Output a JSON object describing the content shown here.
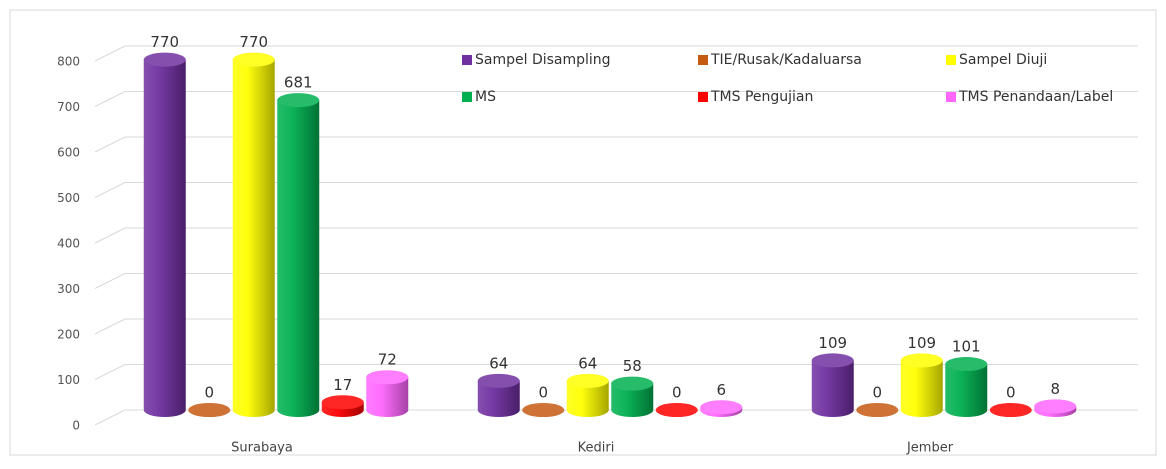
{
  "chart_data": {
    "type": "bar3d",
    "categories": [
      "Surabaya",
      "Kediri",
      "Jember"
    ],
    "series": [
      {
        "name": "Sampel Disampling",
        "color": "#7030a0",
        "values": [
          770,
          64,
          109
        ]
      },
      {
        "name": "TIE/Rusak/Kadaluarsa",
        "color": "#c55a11",
        "values": [
          0,
          0,
          0
        ]
      },
      {
        "name": "Sampel Diuji",
        "color": "#ffff00",
        "values": [
          770,
          64,
          109
        ]
      },
      {
        "name": "MS",
        "color": "#00b050",
        "values": [
          681,
          58,
          101
        ]
      },
      {
        "name": "TMS Pengujian",
        "color": "#ff0000",
        "values": [
          17,
          0,
          0
        ]
      },
      {
        "name": "TMS Penandaan/Label",
        "color": "#ff66ff",
        "values": [
          72,
          6,
          8
        ]
      }
    ],
    "ylim": [
      0,
      800
    ],
    "yticks": [
      0,
      100,
      200,
      300,
      400,
      500,
      600,
      700,
      800
    ],
    "grid": true,
    "legend": "top-right"
  }
}
